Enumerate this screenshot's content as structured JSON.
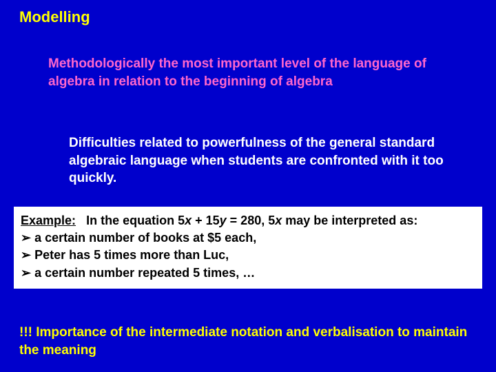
{
  "slide": {
    "title": "Modelling",
    "para1": "Methodologically the most important level of the language of algebra in relation to the beginning of algebra",
    "para2": "Difficulties related to powerfulness of the general standard algebraic language when students are confronted with it too quickly.",
    "example": {
      "lead_label": "Example:",
      "lead_text_1": "In the equation 5",
      "lead_var_x1": "x",
      "lead_text_2": " + 15",
      "lead_var_y": "y",
      "lead_text_3": " = 280, 5",
      "lead_var_x2": "x",
      "lead_text_4": " may be interpreted as:",
      "bullets": [
        "a certain number of books at $5 each,",
        "Peter has 5 times more than Luc,",
        "a certain number repeated 5 times, …"
      ]
    },
    "footer": "!!! Importance of the intermediate notation and verbalisation to maintain the meaning"
  },
  "colors": {
    "background": "#0000cc",
    "title": "#ffff00",
    "para1": "#ff66cc",
    "para2": "#ffffff",
    "box_bg": "#ffffff",
    "box_text": "#000000",
    "footer": "#ffff00"
  }
}
